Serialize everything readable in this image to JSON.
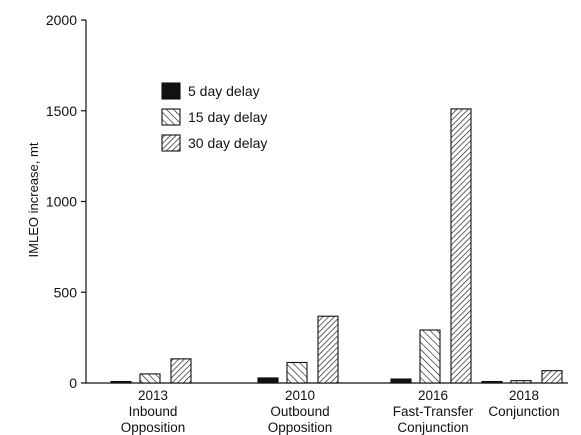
{
  "chart_data": {
    "type": "bar",
    "title": "",
    "xlabel": "",
    "ylabel": "IMLEO increase, mt",
    "ylim": [
      0,
      2000
    ],
    "yticks": [
      0,
      500,
      1000,
      1500,
      2000
    ],
    "grid": false,
    "legend_position": "top-left",
    "categories": [
      [
        "2013",
        "Inbound",
        "Opposition"
      ],
      [
        "2010",
        "Outbound",
        "Opposition"
      ],
      [
        "2016",
        "Fast-Transfer",
        "Conjunction"
      ],
      [
        "2018",
        "Conjunction"
      ]
    ],
    "series": [
      {
        "name": "5 day delay",
        "fill": "solid",
        "values": [
          3,
          28,
          22,
          3
        ]
      },
      {
        "name": "15 day delay",
        "fill": "forward-hatch",
        "values": [
          50,
          113,
          292,
          13
        ]
      },
      {
        "name": "30 day delay",
        "fill": "back-hatch",
        "values": [
          133,
          368,
          1510,
          68
        ]
      }
    ]
  },
  "colors": {
    "ink": "#111111",
    "background": "#ffffff"
  }
}
